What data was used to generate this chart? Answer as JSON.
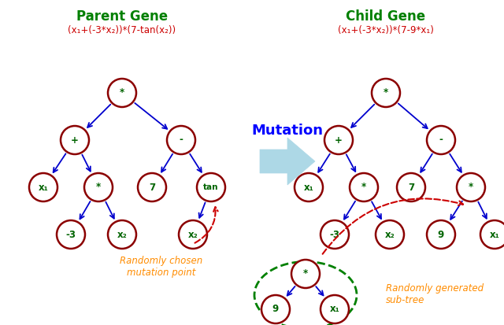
{
  "title_parent": "Parent Gene",
  "title_child": "Child Gene",
  "formula_parent": "(x₁+(-3*x₂))*(7-tan(x₂))",
  "formula_child": "(x₁+(-3*x₂))*(7-9*x₁)",
  "mutation_label": "Mutation",
  "mutation_point_label": "Randomly chosen\nmutation point",
  "subtree_label": "Randomly generated\nsub-tree",
  "bg_color": "#ffffff",
  "node_face_color": "#ffffff",
  "node_edge_color": "#8B0000",
  "node_text_color": "#006400",
  "edge_color": "#0000CD",
  "title_color": "#008000",
  "formula_color": "#CC0000",
  "mutation_text_color": "#0000FF",
  "mutation_point_color": "#FF8C00",
  "subtree_border_color": "#008000",
  "red_arrow_color": "#CC0000",
  "mutation_fill_color": "#ADD8E6",
  "figsize": [
    6.4,
    4.13
  ],
  "dpi": 100
}
